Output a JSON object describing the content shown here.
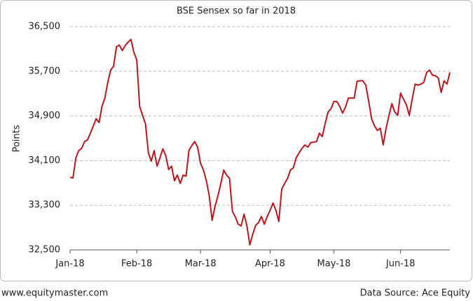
{
  "chart_data": {
    "type": "line",
    "title": "BSE Sensex so far in 2018",
    "y_label": "Points",
    "footer_left": "www.equitymaster.com",
    "footer_right": "Data Source: Ace Equity",
    "color": "#c0141c",
    "grid": true,
    "ylim": [
      32500,
      36500
    ],
    "yticks": [
      {
        "value": 32500,
        "label": "32,500"
      },
      {
        "value": 33300,
        "label": "33,300"
      },
      {
        "value": 34100,
        "label": "34,100"
      },
      {
        "value": 34900,
        "label": "34,900"
      },
      {
        "value": 35700,
        "label": "35,700"
      },
      {
        "value": 36500,
        "label": "36,500"
      }
    ],
    "categories": [
      "Jan-18",
      null,
      null,
      null,
      null,
      null,
      null,
      null,
      null,
      null,
      null,
      null,
      null,
      null,
      null,
      null,
      null,
      null,
      null,
      null,
      null,
      null,
      null,
      "Feb-18",
      null,
      null,
      null,
      null,
      null,
      null,
      null,
      null,
      null,
      null,
      null,
      null,
      null,
      null,
      null,
      null,
      null,
      null,
      null,
      null,
      null,
      "Mar-18",
      null,
      null,
      null,
      null,
      null,
      null,
      null,
      null,
      null,
      null,
      null,
      null,
      null,
      null,
      null,
      null,
      null,
      null,
      null,
      null,
      null,
      null,
      null,
      "Apr-18",
      null,
      null,
      null,
      null,
      null,
      null,
      null,
      null,
      null,
      null,
      null,
      null,
      null,
      null,
      null,
      null,
      null,
      null,
      null,
      null,
      null,
      "May-18",
      null,
      null,
      null,
      null,
      null,
      null,
      null,
      null,
      null,
      null,
      null,
      null,
      null,
      null,
      null,
      null,
      null,
      null,
      null,
      null,
      null,
      null,
      "Jun-18",
      null,
      null,
      null,
      null,
      null,
      null,
      null,
      null,
      null,
      null,
      null,
      null,
      null,
      null,
      null,
      null,
      null
    ],
    "values": [
      33800,
      33790,
      34150,
      34280,
      34320,
      34440,
      34470,
      34590,
      34720,
      34850,
      34780,
      35070,
      35220,
      35500,
      35720,
      35790,
      36140,
      36170,
      36070,
      36160,
      36220,
      36270,
      36040,
      35900,
      35070,
      34910,
      34760,
      34240,
      34090,
      34280,
      34000,
      34150,
      34310,
      34190,
      33940,
      34000,
      33740,
      33840,
      33690,
      33840,
      33820,
      34280,
      34370,
      34440,
      34340,
      34050,
      33930,
      33740,
      33470,
      33030,
      33280,
      33470,
      33690,
      33930,
      33840,
      33780,
      33190,
      33090,
      32960,
      32930,
      33140,
      32930,
      32590,
      32780,
      32940,
      32990,
      33100,
      32960,
      33100,
      33210,
      33340,
      33210,
      33010,
      33590,
      33690,
      33780,
      33930,
      33970,
      34150,
      34240,
      34320,
      34380,
      34340,
      34420,
      34430,
      34440,
      34590,
      34530,
      34770,
      34970,
      35030,
      35160,
      35160,
      35070,
      34950,
      35060,
      35220,
      35220,
      35220,
      35520,
      35530,
      35530,
      35450,
      35160,
      34850,
      34720,
      34640,
      34680,
      34380,
      34680,
      34910,
      35120,
      34970,
      34910,
      35310,
      35200,
      35100,
      34910,
      35200,
      35470,
      35450,
      35470,
      35500,
      35680,
      35720,
      35630,
      35620,
      35580,
      35320,
      35530,
      35470,
      35680
    ]
  }
}
